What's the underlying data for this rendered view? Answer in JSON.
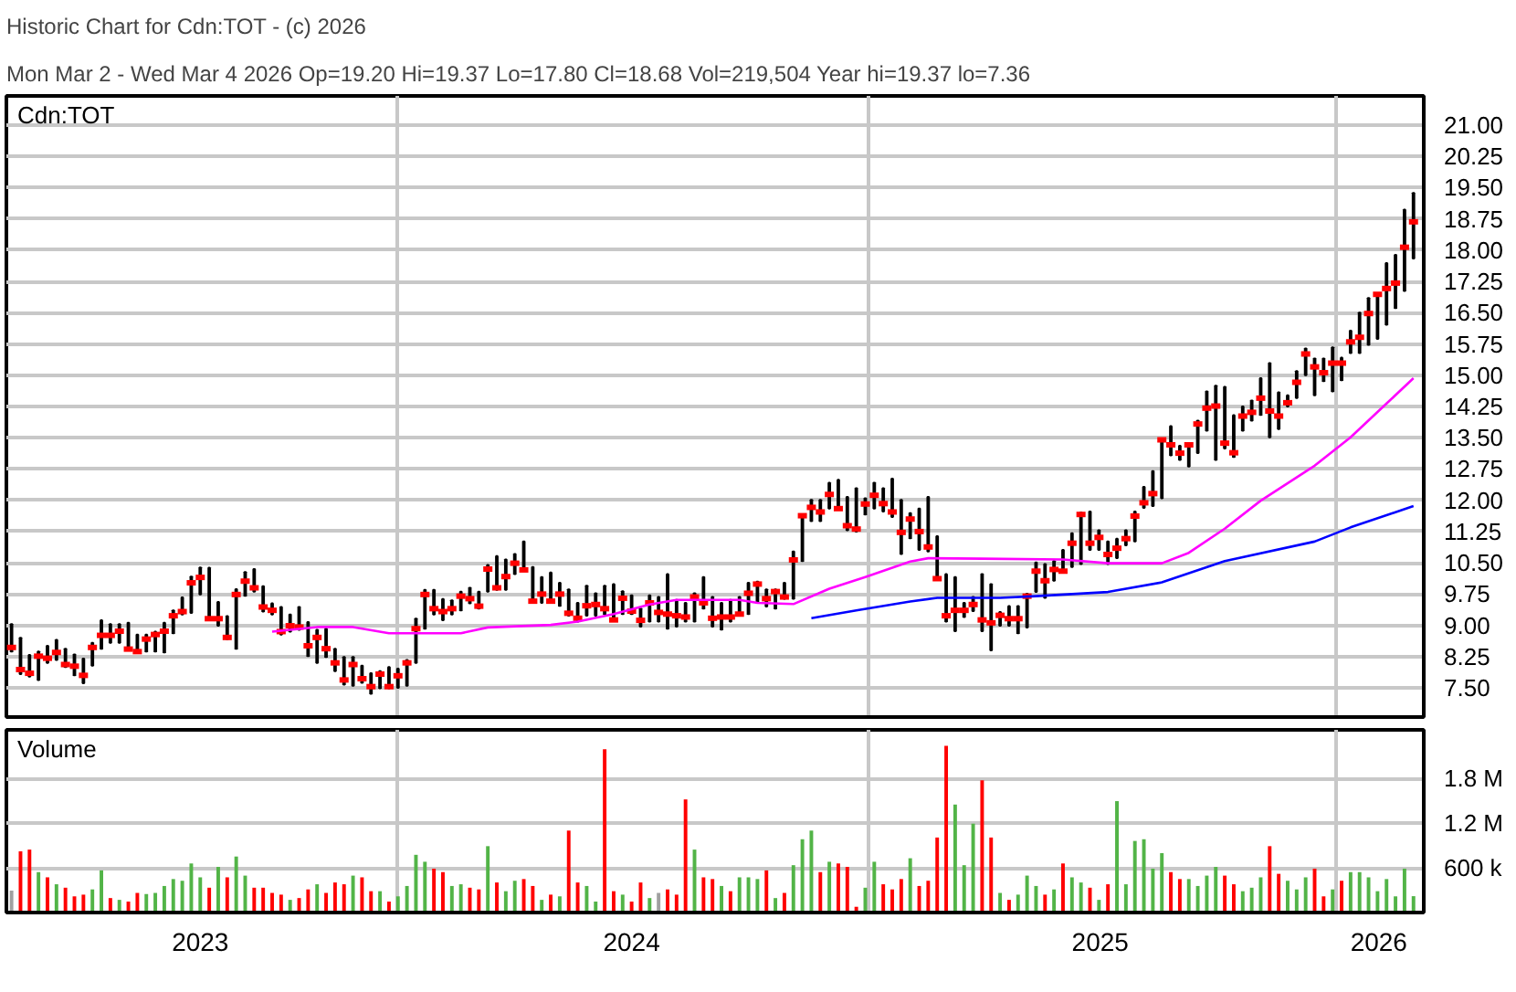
{
  "chart_data": [
    {
      "type": "bar",
      "title": "Historic Chart for Cdn:TOT - (c) 2026",
      "subtitle": "Mon Mar  2 - Wed Mar  4 2026  Op=19.20  Hi=19.37  Lo=17.80  Cl=18.68  Vol=219,504  Year hi=19.37  lo=7.36",
      "annotations": [
        "Cdn:TOT"
      ],
      "x": [
        "2023-03-06",
        "2023-03-13",
        "2023-03-20",
        "2023-03-27",
        "2023-04-03",
        "2023-04-10",
        "2023-04-17",
        "2023-04-24",
        "2023-05-01",
        "2023-05-08",
        "2023-05-15",
        "2023-05-22",
        "2023-05-29",
        "2023-06-05",
        "2023-06-12",
        "2023-06-19",
        "2023-06-26",
        "2023-07-03",
        "2023-07-10",
        "2023-07-17",
        "2023-07-24",
        "2023-07-31",
        "2023-08-07",
        "2023-08-14",
        "2023-08-21",
        "2023-08-28",
        "2023-09-04",
        "2023-09-11",
        "2023-09-18",
        "2023-09-25",
        "2023-10-02",
        "2023-10-09",
        "2023-10-16",
        "2023-10-23",
        "2023-10-30",
        "2023-11-06",
        "2023-11-13",
        "2023-11-20",
        "2023-11-27",
        "2023-12-04",
        "2023-12-11",
        "2023-12-18",
        "2023-12-25",
        "2024-01-01",
        "2024-01-08",
        "2024-01-15",
        "2024-01-22",
        "2024-01-29",
        "2024-02-05",
        "2024-02-12",
        "2024-02-19",
        "2024-02-26",
        "2024-03-04",
        "2024-03-11",
        "2024-03-18",
        "2024-03-25",
        "2024-04-01",
        "2024-04-08",
        "2024-04-15",
        "2024-04-22",
        "2024-04-29",
        "2024-05-06",
        "2024-05-13",
        "2024-05-20",
        "2024-05-27",
        "2024-06-03",
        "2024-06-10",
        "2024-06-17",
        "2024-06-24",
        "2024-07-01",
        "2024-07-08",
        "2024-07-15",
        "2024-07-22",
        "2024-07-29",
        "2024-08-05",
        "2024-08-12",
        "2024-08-19",
        "2024-08-26",
        "2024-09-02",
        "2024-09-09",
        "2024-09-16",
        "2024-09-23",
        "2024-09-30",
        "2024-10-07",
        "2024-10-14",
        "2024-10-21",
        "2024-10-28",
        "2024-11-04",
        "2024-11-11",
        "2024-11-18",
        "2024-11-25",
        "2024-12-02",
        "2024-12-09",
        "2024-12-16",
        "2024-12-23",
        "2024-12-30",
        "2025-01-06",
        "2025-01-13",
        "2025-01-20",
        "2025-01-27",
        "2025-02-03",
        "2025-02-10",
        "2025-02-17",
        "2025-02-24",
        "2025-03-03",
        "2025-03-10",
        "2025-03-17",
        "2025-03-24",
        "2025-03-31",
        "2025-04-07",
        "2025-04-14",
        "2025-04-21",
        "2025-04-28",
        "2025-05-05",
        "2025-05-12",
        "2025-05-19",
        "2025-05-26",
        "2025-06-02",
        "2025-06-09",
        "2025-06-16",
        "2025-06-23",
        "2025-06-30",
        "2025-07-07",
        "2025-07-14",
        "2025-07-21",
        "2025-07-28",
        "2025-08-04",
        "2025-08-11",
        "2025-08-18",
        "2025-08-25",
        "2025-09-01",
        "2025-09-08",
        "2025-09-15",
        "2025-09-22",
        "2025-09-29",
        "2025-10-06",
        "2025-10-13",
        "2025-10-20",
        "2025-10-27",
        "2025-11-03",
        "2025-11-10",
        "2025-11-17",
        "2025-11-24",
        "2025-12-01",
        "2025-12-08",
        "2025-12-15",
        "2025-12-22",
        "2025-12-29",
        "2026-01-05",
        "2026-01-12",
        "2026-01-19",
        "2026-01-26",
        "2026-02-02",
        "2026-02-09",
        "2026-02-16",
        "2026-02-23",
        "2026-03-02"
      ],
      "series": [
        {
          "type": "bar",
          "color": "#000000",
          "base": [
            8.37,
            7.83,
            7.77,
            7.69,
            8.1,
            8.17,
            8.0,
            7.8,
            7.61,
            8.03,
            8.44,
            8.58,
            8.58,
            8.4,
            8.37,
            8.37,
            8.37,
            8.35,
            8.81,
            9.26,
            9.3,
            9.74,
            9.12,
            8.99,
            8.67,
            8.44,
            9.71,
            9.81,
            9.33,
            9.26,
            8.78,
            8.85,
            8.89,
            8.26,
            8.1,
            8.24,
            7.9,
            7.58,
            7.55,
            7.62,
            7.36,
            7.49,
            7.49,
            7.5,
            7.55,
            8.1,
            8.92,
            9.26,
            9.12,
            9.26,
            9.36,
            9.53,
            9.4,
            9.81,
            9.85,
            9.85,
            10.23,
            10.31,
            9.54,
            9.54,
            9.54,
            9.47,
            9.23,
            9.09,
            9.23,
            9.23,
            9.27,
            9.13,
            9.27,
            9.27,
            8.97,
            9.09,
            9.09,
            8.92,
            8.97,
            9.09,
            9.09,
            9.4,
            8.97,
            8.9,
            9.09,
            9.23,
            9.27,
            9.54,
            9.45,
            9.4,
            9.64,
            9.64,
            10.54,
            11.5,
            11.5,
            11.8,
            11.8,
            11.28,
            11.25,
            11.66,
            11.8,
            11.73,
            11.6,
            10.71,
            11.09,
            10.81,
            10.77,
            10.09,
            9.09,
            8.86,
            9.2,
            9.34,
            8.86,
            8.4,
            8.99,
            8.99,
            8.81,
            8.95,
            9.8,
            9.66,
            10.07,
            10.27,
            10.4,
            10.47,
            10.81,
            10.81,
            10.47,
            10.61,
            10.92,
            11.01,
            11.82,
            11.86,
            12.05,
            13.08,
            12.97,
            12.81,
            13.13,
            13.67,
            12.97,
            13.24,
            13.04,
            13.67,
            13.91,
            14.05,
            13.51,
            13.71,
            14.25,
            14.45,
            15.0,
            14.52,
            14.86,
            14.61,
            14.88,
            15.53,
            15.53,
            15.73,
            15.87,
            16.21,
            16.61,
            17.02,
            17.8
          ],
          "values": [
            0.66,
            0.87,
            0.52,
            0.68,
            0.41,
            0.48,
            0.44,
            0.5,
            0.59,
            0.55,
            0.68,
            0.45,
            0.45,
            0.66,
            0.41,
            0.41,
            0.48,
            0.71,
            0.55,
            0.41,
            0.87,
            0.65,
            1.26,
            0.57,
            0.55,
            1.43,
            0.57,
            0.54,
            0.61,
            0.27,
            0.66,
            0.41,
            0.55,
            0.82,
            0.79,
            0.68,
            0.54,
            0.66,
            0.69,
            0.41,
            0.49,
            0.41,
            0.51,
            0.46,
            0.62,
            1.06,
            0.93,
            0.59,
            0.51,
            0.34,
            0.45,
            0.37,
            0.41,
            0.64,
            0.81,
            0.73,
            0.48,
            0.7,
            0.86,
            0.62,
            0.73,
            0.55,
            0.63,
            0.45,
            0.72,
            0.54,
            0.68,
            0.86,
            0.55,
            0.45,
            0.43,
            0.63,
            0.59,
            1.31,
            0.64,
            0.45,
            0.68,
            0.76,
            0.71,
            0.64,
            0.52,
            0.45,
            0.75,
            0.51,
            0.41,
            0.46,
            0.38,
            1.13,
            1.12,
            0.51,
            0.51,
            0.62,
            0.69,
            0.8,
            1.04,
            0.39,
            0.62,
            0.56,
            0.92,
            1.3,
            0.6,
            0.99,
            1.31,
            1.05,
            1.14,
            1.3,
            0.34,
            0.34,
            1.37,
            1.59,
            0.33,
            0.47,
            0.65,
            0.81,
            0.71,
            0.81,
            0.47,
            0.54,
            0.81,
            1.24,
            0.92,
            0.47,
            0.54,
            0.47,
            0.36,
            0.72,
            0.5,
            0.84,
            1.43,
            0.7,
            0.34,
            0.56,
            0.78,
            0.94,
            1.78,
            1.48,
            1.0,
            0.58,
            0.48,
            0.88,
            1.78,
            0.88,
            0.27,
            0.65,
            0.64,
            0.88,
            0.54,
            1.06,
            0.54,
            0.54,
            0.97,
            1.12,
            1.08,
            1.48,
            1.28,
            1.95,
            1.57
          ]
        },
        {
          "type": "scatter",
          "color": "#ff0000",
          "marker": "square",
          "values": [
            8.47,
            7.94,
            7.85,
            8.26,
            8.21,
            8.35,
            8.06,
            8.02,
            7.8,
            8.47,
            8.76,
            8.76,
            8.86,
            8.43,
            8.37,
            8.67,
            8.78,
            8.86,
            9.23,
            9.33,
            10.02,
            10.15,
            9.16,
            9.16,
            8.71,
            9.74,
            10.06,
            9.9,
            9.44,
            9.36,
            8.85,
            8.99,
            8.96,
            8.51,
            8.71,
            8.44,
            8.1,
            7.69,
            8.06,
            7.72,
            7.53,
            7.83,
            7.53,
            7.79,
            8.1,
            8.92,
            9.74,
            9.4,
            9.33,
            9.4,
            9.7,
            9.64,
            9.46,
            10.35,
            9.9,
            10.17,
            10.49,
            10.33,
            9.58,
            9.75,
            9.58,
            9.75,
            9.29,
            9.17,
            9.47,
            9.5,
            9.4,
            9.13,
            9.65,
            9.34,
            9.12,
            9.54,
            9.31,
            9.27,
            9.23,
            9.2,
            9.68,
            9.54,
            9.17,
            9.2,
            9.2,
            9.27,
            9.77,
            9.99,
            9.64,
            9.81,
            9.68,
            10.57,
            11.63,
            11.83,
            11.72,
            12.14,
            11.8,
            11.39,
            11.31,
            11.91,
            12.12,
            11.92,
            11.72,
            11.23,
            11.55,
            11.25,
            10.88,
            10.12,
            9.23,
            9.36,
            9.36,
            9.5,
            9.13,
            9.06,
            9.24,
            9.16,
            9.16,
            9.7,
            10.3,
            10.07,
            10.34,
            10.3,
            10.97,
            11.66,
            10.97,
            11.11,
            10.7,
            10.85,
            11.08,
            11.62,
            11.94,
            12.16,
            13.45,
            13.33,
            13.13,
            13.33,
            13.83,
            14.21,
            14.26,
            13.37,
            13.14,
            14.02,
            14.11,
            14.45,
            14.14,
            14.02,
            14.34,
            14.83,
            15.51,
            15.2,
            15.06,
            15.29,
            15.29,
            15.8,
            15.91,
            16.48,
            16.94,
            17.08,
            17.21,
            18.07,
            18.68
          ]
        },
        {
          "type": "line",
          "color": "#ff00ff",
          "x": [
            "2023-09-25",
            "2023-10-30",
            "2023-11-27",
            "2023-12-25",
            "2024-02-19",
            "2024-03-11",
            "2024-04-29",
            "2024-05-20",
            "2024-06-17",
            "2024-07-15",
            "2024-08-05",
            "2024-09-23",
            "2024-10-07",
            "2024-11-04",
            "2024-12-02",
            "2024-12-30",
            "2025-02-03",
            "2025-02-17",
            "2025-03-31",
            "2025-06-02",
            "2025-07-07",
            "2025-08-18",
            "2025-09-08",
            "2025-10-06",
            "2025-11-03",
            "2025-12-15",
            "2026-01-12",
            "2026-02-09",
            "2026-03-02"
          ],
          "values": [
            8.85,
            8.96,
            8.96,
            8.81,
            8.81,
            8.95,
            9.01,
            9.09,
            9.27,
            9.5,
            9.61,
            9.61,
            9.54,
            9.51,
            9.88,
            10.16,
            10.53,
            10.61,
            10.6,
            10.58,
            10.49,
            10.49,
            10.74,
            11.32,
            11.99,
            12.83,
            13.51,
            14.32,
            14.93
          ]
        },
        {
          "type": "line",
          "color": "#0000ff",
          "x": [
            "2024-11-18",
            "2024-12-23",
            "2025-02-03",
            "2025-02-24",
            "2025-04-14",
            "2025-05-12",
            "2025-07-07",
            "2025-08-18",
            "2025-10-06",
            "2025-12-15",
            "2026-01-12",
            "2026-03-02"
          ],
          "values": [
            9.17,
            9.36,
            9.57,
            9.66,
            9.66,
            9.7,
            9.8,
            10.03,
            10.54,
            11.01,
            11.35,
            11.86
          ]
        }
      ],
      "xlim": [
        "2023-03-02",
        "2026-03-10"
      ],
      "xticks": [
        {
          "value": "2024-01-01",
          "label": null
        },
        {
          "value": "2025-01-01",
          "label": null
        },
        {
          "value": "2026-01-01",
          "label": null
        }
      ],
      "ylim": [
        6.8,
        21.7
      ],
      "yticks": [
        {
          "value": 7.5,
          "label": "7.50"
        },
        {
          "value": 8.25,
          "label": "8.25"
        },
        {
          "value": 9,
          "label": "9.00"
        },
        {
          "value": 9.75,
          "label": "9.75"
        },
        {
          "value": 10.5,
          "label": "10.50"
        },
        {
          "value": 11.25,
          "label": "11.25"
        },
        {
          "value": 12,
          "label": "12.00"
        },
        {
          "value": 12.75,
          "label": "12.75"
        },
        {
          "value": 13.5,
          "label": "13.50"
        },
        {
          "value": 14.25,
          "label": "14.25"
        },
        {
          "value": 15,
          "label": "15.00"
        },
        {
          "value": 15.75,
          "label": "15.75"
        },
        {
          "value": 16.5,
          "label": "16.50"
        },
        {
          "value": 17.25,
          "label": "17.25"
        },
        {
          "value": 18,
          "label": "18.00"
        },
        {
          "value": 18.75,
          "label": "18.75"
        },
        {
          "value": 19.5,
          "label": "19.50"
        },
        {
          "value": 20.25,
          "label": "20.25"
        },
        {
          "value": 21,
          "label": "21.00"
        }
      ],
      "tick_labels": "y",
      "grid": true
    },
    {
      "type": "bar",
      "annotations": [
        "Volume"
      ],
      "x": [
        "2023-03-06",
        "2023-03-13",
        "2023-03-20",
        "2023-03-27",
        "2023-04-03",
        "2023-04-10",
        "2023-04-17",
        "2023-04-24",
        "2023-05-01",
        "2023-05-08",
        "2023-05-15",
        "2023-05-22",
        "2023-05-29",
        "2023-06-05",
        "2023-06-12",
        "2023-06-19",
        "2023-06-26",
        "2023-07-03",
        "2023-07-10",
        "2023-07-17",
        "2023-07-24",
        "2023-07-31",
        "2023-08-07",
        "2023-08-14",
        "2023-08-21",
        "2023-08-28",
        "2023-09-04",
        "2023-09-11",
        "2023-09-18",
        "2023-09-25",
        "2023-10-02",
        "2023-10-09",
        "2023-10-16",
        "2023-10-23",
        "2023-10-30",
        "2023-11-06",
        "2023-11-13",
        "2023-11-20",
        "2023-11-27",
        "2023-12-04",
        "2023-12-11",
        "2023-12-18",
        "2023-12-25",
        "2024-01-01",
        "2024-01-08",
        "2024-01-15",
        "2024-01-22",
        "2024-01-29",
        "2024-02-05",
        "2024-02-12",
        "2024-02-19",
        "2024-02-26",
        "2024-03-04",
        "2024-03-11",
        "2024-03-18",
        "2024-03-25",
        "2024-04-01",
        "2024-04-08",
        "2024-04-15",
        "2024-04-22",
        "2024-04-29",
        "2024-05-06",
        "2024-05-13",
        "2024-05-20",
        "2024-05-27",
        "2024-06-03",
        "2024-06-10",
        "2024-06-17",
        "2024-06-24",
        "2024-07-01",
        "2024-07-08",
        "2024-07-15",
        "2024-07-22",
        "2024-07-29",
        "2024-08-05",
        "2024-08-12",
        "2024-08-19",
        "2024-08-26",
        "2024-09-02",
        "2024-09-09",
        "2024-09-16",
        "2024-09-23",
        "2024-09-30",
        "2024-10-07",
        "2024-10-14",
        "2024-10-21",
        "2024-10-28",
        "2024-11-04",
        "2024-11-11",
        "2024-11-18",
        "2024-11-25",
        "2024-12-02",
        "2024-12-09",
        "2024-12-16",
        "2024-12-23",
        "2024-12-30",
        "2025-01-06",
        "2025-01-13",
        "2025-01-20",
        "2025-01-27",
        "2025-02-03",
        "2025-02-10",
        "2025-02-17",
        "2025-02-24",
        "2025-03-03",
        "2025-03-10",
        "2025-03-17",
        "2025-03-24",
        "2025-03-31",
        "2025-04-07",
        "2025-04-14",
        "2025-04-21",
        "2025-04-28",
        "2025-05-05",
        "2025-05-12",
        "2025-05-19",
        "2025-05-26",
        "2025-06-02",
        "2025-06-09",
        "2025-06-16",
        "2025-06-23",
        "2025-06-30",
        "2025-07-07",
        "2025-07-14",
        "2025-07-21",
        "2025-07-28",
        "2025-08-04",
        "2025-08-11",
        "2025-08-18",
        "2025-08-25",
        "2025-09-01",
        "2025-09-08",
        "2025-09-15",
        "2025-09-22",
        "2025-09-29",
        "2025-10-06",
        "2025-10-13",
        "2025-10-20",
        "2025-10-27",
        "2025-11-03",
        "2025-11-10",
        "2025-11-17",
        "2025-11-24",
        "2025-12-01",
        "2025-12-08",
        "2025-12-15",
        "2025-12-22",
        "2025-12-29",
        "2026-01-05",
        "2026-01-12",
        "2026-01-19",
        "2026-01-26",
        "2026-02-02",
        "2026-02-09",
        "2026-02-16",
        "2026-02-23",
        "2026-03-02"
      ],
      "values": [
        294000,
        821000,
        844000,
        542000,
        472000,
        379000,
        333000,
        217000,
        240000,
        310000,
        565000,
        194000,
        170000,
        147000,
        263000,
        248000,
        263000,
        356000,
        449000,
        426000,
        658000,
        472000,
        333000,
        612000,
        472000,
        751000,
        495000,
        333000,
        333000,
        263000,
        240000,
        170000,
        194000,
        310000,
        379000,
        263000,
        403000,
        379000,
        495000,
        472000,
        286000,
        286000,
        147000,
        217000,
        356000,
        774000,
        681000,
        588000,
        542000,
        356000,
        379000,
        333000,
        310000,
        890000,
        403000,
        286000,
        426000,
        449000,
        356000,
        170000,
        240000,
        217000,
        1099000,
        403000,
        356000,
        147000,
        2191000,
        286000,
        240000,
        147000,
        403000,
        194000,
        263000,
        310000,
        240000,
        1517000,
        844000,
        472000,
        449000,
        356000,
        286000,
        472000,
        472000,
        449000,
        565000,
        194000,
        263000,
        635000,
        983000,
        1099000,
        542000,
        681000,
        658000,
        612000,
        77000,
        333000,
        681000,
        379000,
        310000,
        449000,
        728000,
        356000,
        426000,
        1006000,
        2237000,
        1448000,
        635000,
        1192000,
        1773000,
        1006000,
        263000,
        170000,
        240000,
        495000,
        356000,
        240000,
        310000,
        658000,
        472000,
        403000,
        333000,
        170000,
        379000,
        1494000,
        379000,
        960000,
        983000,
        588000,
        797000,
        542000,
        449000,
        449000,
        356000,
        495000,
        612000,
        495000,
        379000,
        286000,
        333000,
        472000,
        890000,
        519000,
        426000,
        310000,
        472000,
        588000,
        217000,
        310000,
        426000,
        542000,
        542000,
        472000,
        286000,
        449000,
        217000,
        588000,
        219504
      ],
      "colors": [
        "#a0a0a0",
        "#ff0000",
        "#ff0000",
        "#52b447",
        "#ff0000",
        "#52b447",
        "#ff0000",
        "#ff0000",
        "#ff0000",
        "#52b447",
        "#52b447",
        "#ff0000",
        "#52b447",
        "#ff0000",
        "#ff0000",
        "#52b447",
        "#52b447",
        "#52b447",
        "#52b447",
        "#52b447",
        "#52b447",
        "#52b447",
        "#ff0000",
        "#52b447",
        "#ff0000",
        "#52b447",
        "#52b447",
        "#ff0000",
        "#ff0000",
        "#ff0000",
        "#ff0000",
        "#52b447",
        "#ff0000",
        "#ff0000",
        "#52b447",
        "#ff0000",
        "#ff0000",
        "#ff0000",
        "#52b447",
        "#ff0000",
        "#ff0000",
        "#52b447",
        "#ff0000",
        "#52b447",
        "#52b447",
        "#52b447",
        "#52b447",
        "#ff0000",
        "#ff0000",
        "#52b447",
        "#52b447",
        "#ff0000",
        "#ff0000",
        "#52b447",
        "#ff0000",
        "#52b447",
        "#52b447",
        "#ff0000",
        "#ff0000",
        "#52b447",
        "#ff0000",
        "#52b447",
        "#ff0000",
        "#ff0000",
        "#52b447",
        "#52b447",
        "#ff0000",
        "#ff0000",
        "#52b447",
        "#ff0000",
        "#ff0000",
        "#52b447",
        "#a0a0a0",
        "#ff0000",
        "#ff0000",
        "#ff0000",
        "#52b447",
        "#ff0000",
        "#ff0000",
        "#52b447",
        "#ff0000",
        "#52b447",
        "#52b447",
        "#52b447",
        "#ff0000",
        "#52b447",
        "#ff0000",
        "#52b447",
        "#52b447",
        "#52b447",
        "#ff0000",
        "#52b447",
        "#ff0000",
        "#ff0000",
        "#ff0000",
        "#52b447",
        "#52b447",
        "#ff0000",
        "#ff0000",
        "#ff0000",
        "#52b447",
        "#ff0000",
        "#ff0000",
        "#ff0000",
        "#ff0000",
        "#52b447",
        "#52b447",
        "#52b447",
        "#ff0000",
        "#ff0000",
        "#52b447",
        "#ff0000",
        "#52b447",
        "#52b447",
        "#52b447",
        "#ff0000",
        "#52b447",
        "#ff0000",
        "#52b447",
        "#52b447",
        "#ff0000",
        "#52b447",
        "#ff0000",
        "#52b447",
        "#52b447",
        "#52b447",
        "#52b447",
        "#52b447",
        "#52b447",
        "#ff0000",
        "#ff0000",
        "#52b447",
        "#52b447",
        "#52b447",
        "#52b447",
        "#ff0000",
        "#ff0000",
        "#52b447",
        "#52b447",
        "#52b447",
        "#ff0000",
        "#ff0000",
        "#52b447",
        "#52b447",
        "#52b447",
        "#ff0000",
        "#ff0000",
        "#52b447",
        "#ff0000",
        "#52b447",
        "#52b447",
        "#52b447",
        "#52b447",
        "#52b447",
        "#52b447",
        "#52b447",
        "#52b447"
      ],
      "xlim": [
        "2023-03-02",
        "2026-03-10"
      ],
      "xticks": [
        {
          "value": "2024-01-01",
          "label": null
        },
        {
          "value": "2025-01-01",
          "label": null
        },
        {
          "value": "2026-01-01",
          "label": null
        },
        {
          "value": "2023-07-31",
          "label": "2023"
        },
        {
          "value": "2024-07-01",
          "label": "2024"
        },
        {
          "value": "2025-07-01",
          "label": "2025"
        },
        {
          "value": "2026-02-03",
          "label": "2026"
        }
      ],
      "ylim": [
        0,
        2450000
      ],
      "yticks": [
        {
          "value": 600000,
          "label": "600 k"
        },
        {
          "value": 1200000,
          "label": "1.2 M"
        },
        {
          "value": 1800000,
          "label": "1.8 M"
        }
      ],
      "grid": true
    }
  ]
}
